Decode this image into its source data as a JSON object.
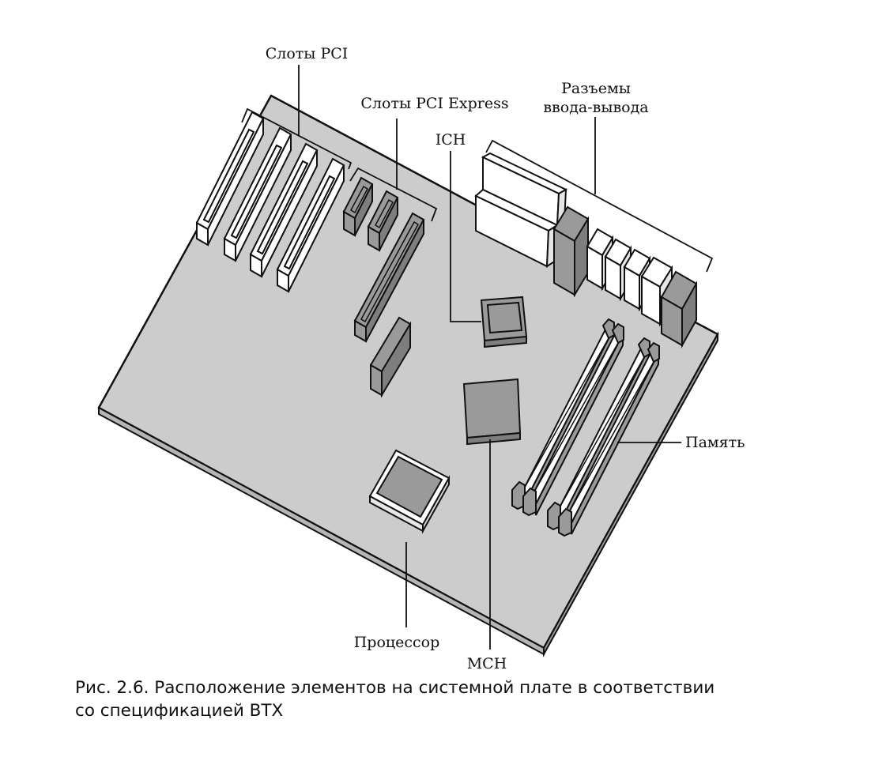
{
  "labels": {
    "pci": "Слоты PCI",
    "pcie": "Слоты PCI Express",
    "ich": "ICH",
    "io_line1": "Разъемы",
    "io_line2": "ввода-вывода",
    "memory": "Память",
    "cpu": "Процессор",
    "mch": "MCH"
  },
  "caption": {
    "line1": "Рис. 2.6. Расположение элементов на системной плате в соответствии",
    "line2": "со спецификацией BTX"
  },
  "colors": {
    "board": "#cccccc",
    "dark_component": "#9a9a9a",
    "outline": "#111111",
    "light_component": "#ffffff"
  }
}
